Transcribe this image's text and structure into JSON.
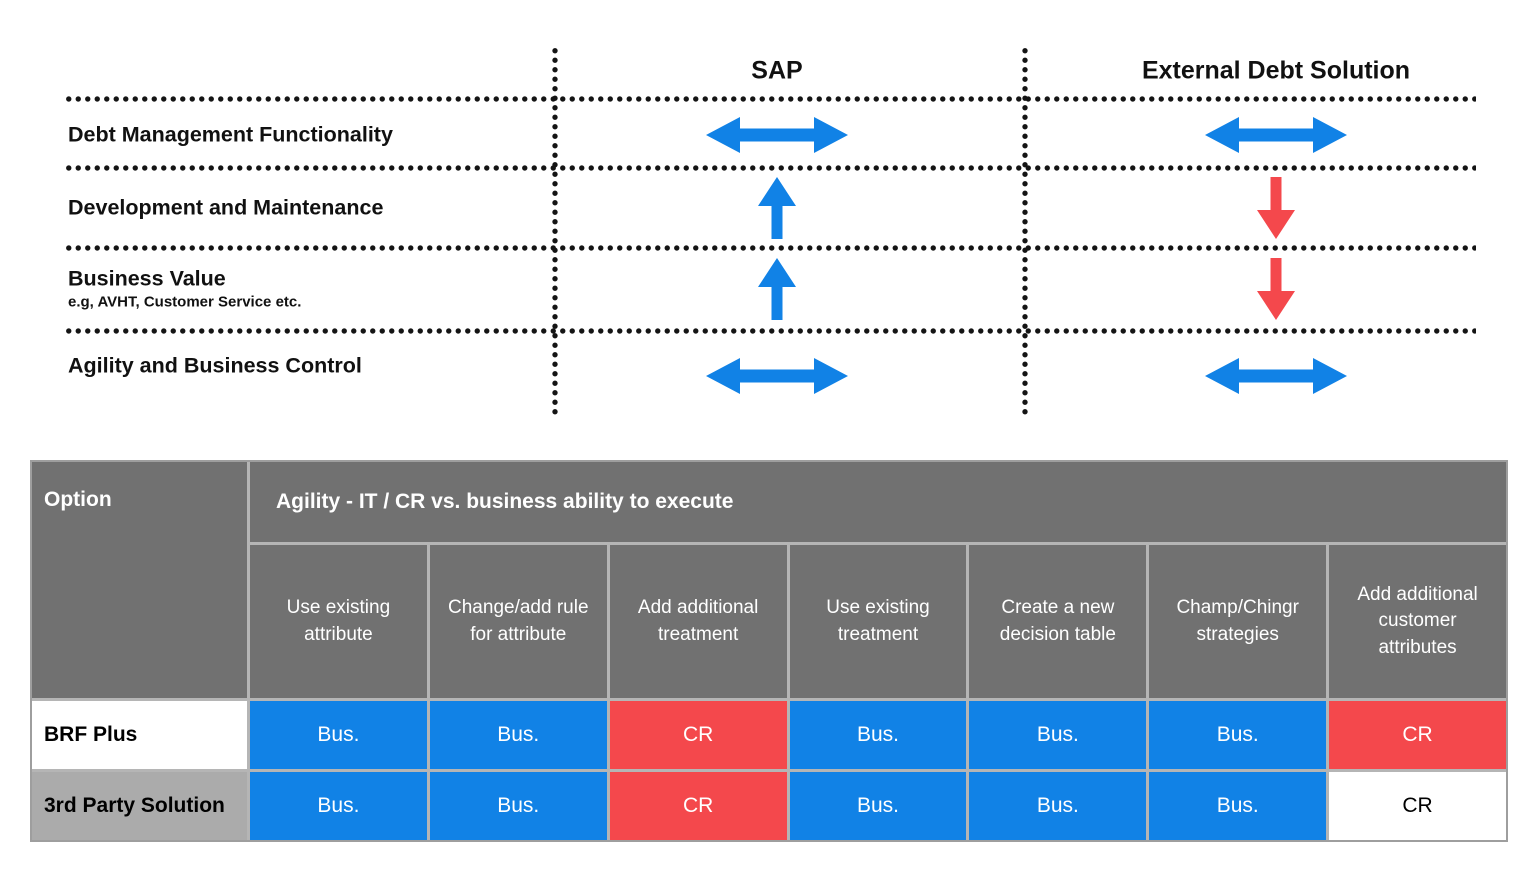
{
  "colors": {
    "blue": "#1182e6",
    "red": "#f4484c",
    "header_gray": "#717171",
    "row_label_gray": "#ababab",
    "grout_gray": "#b5b5b5",
    "dot_black": "#141414"
  },
  "comparison_matrix": {
    "column_headers": [
      "SAP",
      "External Debt Solution"
    ],
    "rows": [
      {
        "label": "Debt Management Functionality",
        "sublabel": "",
        "sap_trend": "both",
        "external_trend": "both"
      },
      {
        "label": "Development and Maintenance",
        "sublabel": "",
        "sap_trend": "up",
        "external_trend": "down"
      },
      {
        "label": "Business Value",
        "sublabel": "e.g, AVHT, Customer Service etc.",
        "sap_trend": "up",
        "external_trend": "down"
      },
      {
        "label": "Agility and Business Control",
        "sublabel": "",
        "sap_trend": "both",
        "external_trend": "both"
      }
    ]
  },
  "options_table": {
    "option_header": "Option",
    "group_header": "Agility - IT / CR vs. business ability to execute",
    "column_headers": [
      "Use existing attribute",
      "Change/add rule for attribute",
      "Add additional treatment",
      "Use existing treatment",
      "Create a new decision table",
      "Champ/Chingr strategies",
      "Add additional customer attributes"
    ],
    "rows": [
      {
        "option": "BRF Plus",
        "option_style": "white",
        "cells": [
          {
            "label": "Bus.",
            "style": "blue"
          },
          {
            "label": "Bus.",
            "style": "blue"
          },
          {
            "label": "CR",
            "style": "red"
          },
          {
            "label": "Bus.",
            "style": "blue"
          },
          {
            "label": "Bus.",
            "style": "blue"
          },
          {
            "label": "Bus.",
            "style": "blue"
          },
          {
            "label": "CR",
            "style": "red"
          }
        ]
      },
      {
        "option": "3rd Party Solution",
        "option_style": "gray",
        "cells": [
          {
            "label": "Bus.",
            "style": "blue"
          },
          {
            "label": "Bus.",
            "style": "blue"
          },
          {
            "label": "CR",
            "style": "red"
          },
          {
            "label": "Bus.",
            "style": "blue"
          },
          {
            "label": "Bus.",
            "style": "blue"
          },
          {
            "label": "Bus.",
            "style": "blue"
          },
          {
            "label": "CR",
            "style": "white"
          }
        ]
      }
    ]
  }
}
